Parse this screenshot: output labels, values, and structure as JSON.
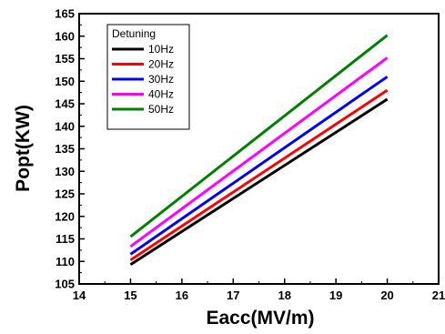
{
  "chart_data": {
    "type": "line",
    "xlabel": "Eacc(MV/m)",
    "ylabel": "Popt(KW)",
    "xlim": [
      14,
      21
    ],
    "ylim": [
      105,
      165
    ],
    "xticks": [
      14,
      15,
      16,
      17,
      18,
      19,
      20,
      21
    ],
    "yticks": [
      105,
      110,
      115,
      120,
      125,
      130,
      135,
      140,
      145,
      150,
      155,
      160,
      165
    ],
    "grid": false,
    "legend": {
      "title": "Detuning",
      "placement": "top-left"
    },
    "x": [
      15,
      20
    ],
    "series": [
      {
        "name": "10Hz",
        "color": "#000000",
        "values": [
          109.3,
          146.0
        ]
      },
      {
        "name": "20Hz",
        "color": "#ff0000",
        "values": [
          110.3,
          148.0
        ]
      },
      {
        "name": "30Hz",
        "color": "#0000ff",
        "values": [
          111.6,
          151.0
        ]
      },
      {
        "name": "40Hz",
        "color": "#ff00ff",
        "values": [
          113.3,
          155.2
        ]
      },
      {
        "name": "50Hz",
        "color": "#008000",
        "values": [
          115.5,
          160.2
        ]
      }
    ]
  }
}
